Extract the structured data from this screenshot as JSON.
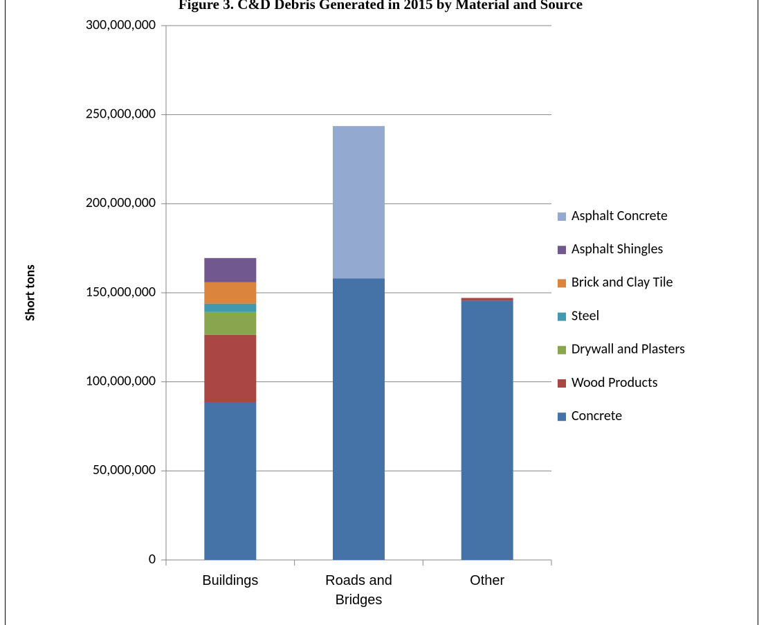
{
  "chart_data": {
    "type": "stacked_bar",
    "title": "Figure 3. C&D Debris Generated in 2015 by Material and Source",
    "y_label": "Short tons",
    "categories": [
      "Buildings",
      "Roads and Bridges",
      "Other"
    ],
    "series": [
      {
        "name": "Concrete",
        "color": "#4572a7",
        "values": [
          88600000,
          158100000,
          145600000
        ]
      },
      {
        "name": "Wood Products",
        "color": "#aa4643",
        "values": [
          37800000,
          null,
          1500000
        ]
      },
      {
        "name": "Drywall and Plasters",
        "color": "#89a54e",
        "values": [
          12800000,
          null,
          null
        ]
      },
      {
        "name": "Steel",
        "color": "#4198af",
        "values": [
          4700000,
          null,
          null
        ]
      },
      {
        "name": "Brick and Clay Tile",
        "color": "#db843d",
        "values": [
          12000000,
          null,
          null
        ]
      },
      {
        "name": "Asphalt Shingles",
        "color": "#71588f",
        "values": [
          13600000,
          null,
          null
        ]
      },
      {
        "name": "Asphalt Concrete",
        "color": "#93a9cf",
        "values": [
          null,
          85500000,
          null
        ]
      }
    ],
    "ylim": [
      0,
      300000000
    ],
    "yticks": [
      0,
      {
        "value": 50000000,
        "label": "50,000,000"
      },
      {
        "value": 100000000,
        "label": "100,000,000"
      },
      {
        "value": 150000000,
        "label": "150,000,000"
      },
      {
        "value": 200000000,
        "label": "200,000,000"
      },
      {
        "value": 250000000,
        "label": "250,000,000"
      },
      {
        "value": 300000000,
        "label": "300,000,000"
      }
    ],
    "grid": true,
    "legend": "right"
  }
}
